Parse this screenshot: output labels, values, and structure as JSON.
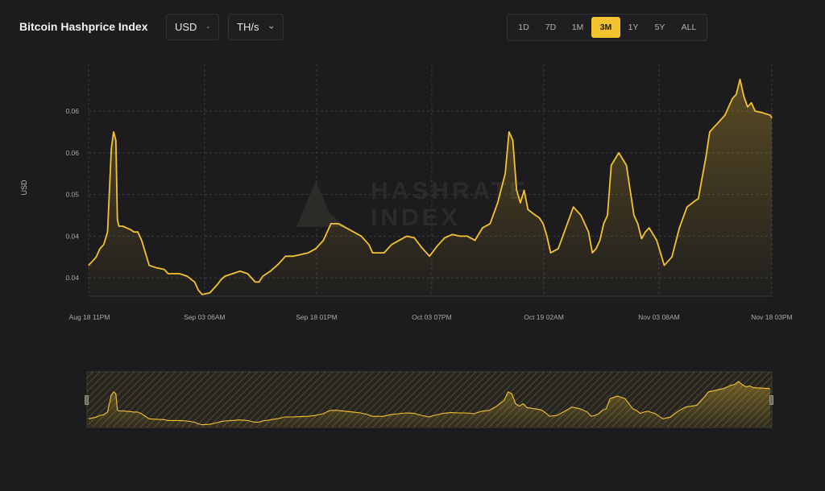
{
  "header": {
    "title": "Bitcoin Hashprice Index",
    "currency_label": "USD",
    "unit_label": "TH/s"
  },
  "range_buttons": [
    "1D",
    "7D",
    "1M",
    "3M",
    "1Y",
    "5Y",
    "ALL"
  ],
  "active_range": "3M",
  "watermark": {
    "line1": "HASHRATE",
    "line2": "INDEX"
  },
  "colors": {
    "accent": "#f5c230",
    "background": "#1c1c1e"
  },
  "icons": {
    "dropdown": "chevron-down-icon",
    "logo": "hashrate-index-logo-icon"
  },
  "chart_data": {
    "type": "area",
    "title": "Bitcoin Hashprice Index",
    "ylabel": "USD",
    "xlabel": "",
    "ylim": [
      0.0378,
      0.0656
    ],
    "y_ticks": [
      0.04,
      0.045,
      0.05,
      0.055,
      0.06
    ],
    "y_tick_labels": [
      "0.04",
      "0.04",
      "0.05",
      "0.06",
      "0.06"
    ],
    "x_ticks": [
      0,
      15.3,
      30.1,
      45.3,
      60.1,
      75.3,
      90.2
    ],
    "x_tick_labels": [
      "Aug 18 11PM",
      "Sep 03 06AM",
      "Sep 18 01PM",
      "Oct 03 07PM",
      "Oct 19 02AM",
      "Nov 03 08AM",
      "Nov 18 03PM"
    ],
    "grid": true,
    "legend": "none",
    "series": [
      {
        "x": [
          0,
          1,
          1.5,
          2,
          2.5,
          3,
          3.3,
          3.6,
          3.8,
          4,
          4.5,
          5,
          5.5,
          6,
          6.5,
          7,
          8,
          9,
          10,
          10.5,
          11,
          12,
          13,
          14,
          14.5,
          15,
          16,
          17,
          17.5,
          18,
          19,
          20,
          21,
          22,
          22.5,
          23,
          24,
          25,
          26,
          27,
          28,
          29,
          30,
          31,
          32,
          33,
          34,
          35,
          36,
          37,
          37.5,
          38,
          39,
          40,
          41,
          42,
          43,
          44,
          45,
          46,
          47,
          48,
          49,
          50,
          51,
          52,
          53,
          54,
          55,
          55.5,
          56,
          56.5,
          57,
          57.5,
          58,
          59,
          59.5,
          60,
          60.5,
          61,
          62,
          63,
          64,
          65,
          66,
          66.5,
          67,
          67.5,
          68,
          68.5,
          69,
          70,
          71,
          72,
          72.5,
          73,
          73.5,
          74,
          75,
          75.5,
          76,
          77,
          78,
          79,
          80,
          80.5,
          81,
          81.5,
          82,
          82.5,
          83,
          84,
          85,
          85.5,
          86,
          86.5,
          87,
          87.5,
          88,
          89,
          90,
          90.2
        ],
        "y": [
          0.0415,
          0.0425,
          0.0435,
          0.044,
          0.0455,
          0.0555,
          0.0575,
          0.0565,
          0.047,
          0.0462,
          0.0462,
          0.046,
          0.0458,
          0.0455,
          0.0455,
          0.0445,
          0.0415,
          0.0412,
          0.041,
          0.0405,
          0.0405,
          0.0405,
          0.0402,
          0.0395,
          0.0385,
          0.038,
          0.0382,
          0.0392,
          0.0398,
          0.0402,
          0.0405,
          0.0408,
          0.0405,
          0.0395,
          0.0395,
          0.0402,
          0.0408,
          0.0416,
          0.0426,
          0.0426,
          0.0428,
          0.043,
          0.0435,
          0.0445,
          0.0465,
          0.0465,
          0.046,
          0.0455,
          0.045,
          0.044,
          0.043,
          0.043,
          0.043,
          0.044,
          0.0445,
          0.045,
          0.0448,
          0.0436,
          0.0426,
          0.0438,
          0.0448,
          0.0452,
          0.045,
          0.045,
          0.0445,
          0.046,
          0.0465,
          0.049,
          0.0525,
          0.0575,
          0.0565,
          0.0505,
          0.049,
          0.0505,
          0.0482,
          0.0475,
          0.0472,
          0.0465,
          0.045,
          0.043,
          0.0435,
          0.046,
          0.0485,
          0.0475,
          0.0455,
          0.043,
          0.0435,
          0.0445,
          0.0465,
          0.0475,
          0.0535,
          0.055,
          0.0535,
          0.0475,
          0.0465,
          0.0447,
          0.0455,
          0.046,
          0.0445,
          0.043,
          0.0415,
          0.0425,
          0.046,
          0.0485,
          0.0492,
          0.0495,
          0.052,
          0.0545,
          0.0575,
          0.058,
          0.0585,
          0.0595,
          0.0615,
          0.062,
          0.0638,
          0.0618,
          0.0605,
          0.061,
          0.06,
          0.0598,
          0.0595,
          0.0592
        ]
      }
    ]
  }
}
